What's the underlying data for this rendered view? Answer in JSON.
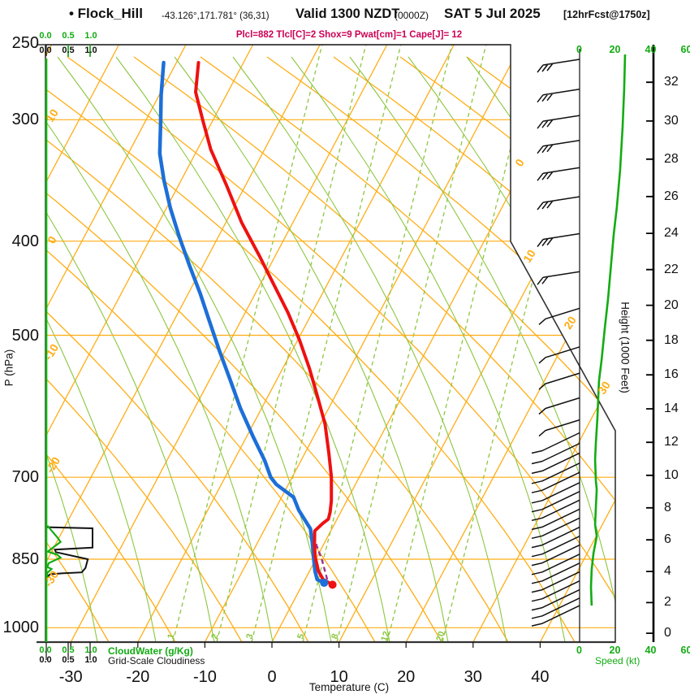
{
  "header": {
    "station": "• Flock_Hill",
    "coords": "-43.126°,171.781° (36,31)",
    "valid": "Valid 1300 NZDT",
    "valid_utc": "(0000Z)",
    "date": "SAT 5 Jul 2025",
    "fcst": "[12hrFcst@1750z]",
    "indices": "Plcl=882 Tlcl[C]=2 Shox=9 Pwat[cm]=1 Cape[J]= 12"
  },
  "axes": {
    "pressure_label": "P (hPa)",
    "pressure_ticks": [
      250,
      300,
      400,
      500,
      700,
      850,
      1000
    ],
    "pressure_gridlines": [
      300,
      400,
      500,
      700,
      850,
      1000
    ],
    "temp_label": "Temperature (C)",
    "temp_ticks": [
      -30,
      -20,
      -10,
      0,
      10,
      20,
      30,
      40
    ],
    "height_label": "Height (1000 Feet)",
    "height_ticks": [
      0,
      2,
      4,
      6,
      8,
      10,
      12,
      14,
      16,
      18,
      20,
      22,
      24,
      26,
      28,
      30,
      32
    ],
    "speed_label": "Speed (kt)",
    "speed_ticks": [
      "0",
      "20",
      "40",
      "60"
    ],
    "cloudwater_label": "CloudWater (g/Kg)",
    "cloudiness_label": "Grid-Scale Cloudiness",
    "cloud_scale": [
      "0.0",
      "0.5",
      "1.0"
    ],
    "isotherm_labels_left": [
      "10",
      "0",
      "-10",
      "-20",
      "-30"
    ],
    "isotherm_labels_right": [
      "0",
      "10",
      "20",
      "30"
    ],
    "mixing_ratio_labels": [
      "1",
      "2",
      "3",
      "5",
      "8",
      "12",
      "20"
    ]
  },
  "colors": {
    "isoline_orange": "#FFAD14",
    "green_ui": "#12AC12",
    "green_plot": "#8CC63F",
    "temp_red": "#EE1111",
    "dew_blue": "#1D6FD8",
    "parcel_magenta": "#993399",
    "indices_magenta": "#CC0055",
    "trace_black": "#111111"
  },
  "chart_data": {
    "type": "skewt-log-p sounding",
    "pressure_range_hpa": [
      250,
      1035
    ],
    "temp_axis_range_c": [
      -35,
      45
    ],
    "temperature_profile_p_t": [
      [
        262,
        -56.7
      ],
      [
        281,
        -54.8
      ],
      [
        301,
        -51.4
      ],
      [
        322,
        -48.0
      ],
      [
        350,
        -42.9
      ],
      [
        383,
        -37.6
      ],
      [
        414,
        -32.4
      ],
      [
        443,
        -28.0
      ],
      [
        474,
        -23.6
      ],
      [
        506,
        -19.7
      ],
      [
        541,
        -16.0
      ],
      [
        578,
        -12.6
      ],
      [
        617,
        -9.3
      ],
      [
        660,
        -6.5
      ],
      [
        699,
        -4.2
      ],
      [
        740,
        -2.3
      ],
      [
        760,
        -1.6
      ],
      [
        773,
        -1.3
      ],
      [
        781,
        -1.8
      ],
      [
        795,
        -2.4
      ],
      [
        820,
        -1.4
      ],
      [
        845,
        -0.3
      ],
      [
        874,
        1.3
      ],
      [
        892,
        2.7
      ],
      [
        903,
        4.5
      ]
    ],
    "dewpoint_profile_p_t": [
      [
        262,
        -61.9
      ],
      [
        283,
        -59.7
      ],
      [
        304,
        -57.4
      ],
      [
        325,
        -55.3
      ],
      [
        346,
        -52.6
      ],
      [
        370,
        -49.4
      ],
      [
        396,
        -45.8
      ],
      [
        424,
        -42.0
      ],
      [
        453,
        -38.2
      ],
      [
        485,
        -34.5
      ],
      [
        519,
        -30.8
      ],
      [
        555,
        -27.0
      ],
      [
        594,
        -23.2
      ],
      [
        635,
        -19.1
      ],
      [
        673,
        -15.4
      ],
      [
        700,
        -13.2
      ],
      [
        712,
        -11.8
      ],
      [
        734,
        -8.2
      ],
      [
        757,
        -6.4
      ],
      [
        791,
        -3.2
      ],
      [
        818,
        -1.8
      ],
      [
        848,
        -0.4
      ],
      [
        874,
        0.8
      ],
      [
        892,
        1.8
      ],
      [
        899,
        3.1
      ]
    ],
    "parcel_path_p_t": [
      [
        892,
        3.3
      ],
      [
        852,
        1.0
      ],
      [
        818,
        -1.3
      ],
      [
        795,
        -3.0
      ]
    ],
    "surface": {
      "pressure": 903,
      "temp_c": 4.5,
      "dewpoint_c": 3.1
    },
    "grid_scale_cloudiness_p_frac": [
      [
        788,
        0.03
      ],
      [
        790,
        1.0
      ],
      [
        827,
        1.0
      ],
      [
        831,
        0.2
      ],
      [
        836,
        0.22
      ],
      [
        850,
        0.9
      ],
      [
        868,
        0.85
      ],
      [
        877,
        0.77
      ],
      [
        879,
        0.35
      ],
      [
        881,
        0.1
      ],
      [
        887,
        0.03
      ]
    ],
    "cloud_water_p_gkg": [
      [
        785,
        0.04
      ],
      [
        807,
        0.25
      ],
      [
        816,
        0.32
      ],
      [
        829,
        0.13
      ],
      [
        835,
        0.05
      ],
      [
        841,
        0.25
      ],
      [
        847,
        0.32
      ],
      [
        858,
        0.07
      ],
      [
        866,
        0.04
      ],
      [
        870,
        0.13
      ],
      [
        878,
        0.04
      ],
      [
        898,
        0.02
      ]
    ],
    "wind_speed_profile_p_kt": [
      [
        257,
        25.7
      ],
      [
        279,
        25.2
      ],
      [
        305,
        24.3
      ],
      [
        338,
        22.9
      ],
      [
        369,
        21.1
      ],
      [
        394,
        19.3
      ],
      [
        430,
        17.5
      ],
      [
        460,
        16.1
      ],
      [
        492,
        14.3
      ],
      [
        531,
        12.5
      ],
      [
        557,
        11.1
      ],
      [
        579,
        10.7
      ],
      [
        609,
        10.2
      ],
      [
        646,
        9.3
      ],
      [
        671,
        8.9
      ],
      [
        705,
        9.3
      ],
      [
        721,
        9.8
      ],
      [
        753,
        9.3
      ],
      [
        783,
        8.9
      ],
      [
        805,
        9.8
      ],
      [
        838,
        8.0
      ],
      [
        871,
        7.0
      ],
      [
        908,
        6.6
      ],
      [
        949,
        7.0
      ]
    ],
    "wind_barbs": [
      {
        "p": 260,
        "style": "f3"
      },
      {
        "p": 279,
        "style": "f3"
      },
      {
        "p": 297,
        "style": "f3"
      },
      {
        "p": 315,
        "style": "f3"
      },
      {
        "p": 336,
        "style": "f3"
      },
      {
        "p": 360,
        "style": "f3"
      },
      {
        "p": 393,
        "style": "f3"
      },
      {
        "p": 430,
        "style": "f2"
      },
      {
        "p": 469,
        "style": "f1"
      },
      {
        "p": 514,
        "style": "f1"
      },
      {
        "p": 547,
        "style": "f1"
      },
      {
        "p": 580,
        "style": "f1"
      },
      {
        "p": 611,
        "style": "f1"
      },
      {
        "p": 630,
        "style": "h"
      },
      {
        "p": 646,
        "style": "h"
      },
      {
        "p": 661,
        "style": "h"
      },
      {
        "p": 677,
        "style": "h"
      },
      {
        "p": 692,
        "style": "h"
      },
      {
        "p": 709,
        "style": "h"
      },
      {
        "p": 724,
        "style": "h"
      },
      {
        "p": 739,
        "style": "h"
      },
      {
        "p": 755,
        "style": "h"
      },
      {
        "p": 771,
        "style": "h"
      },
      {
        "p": 788,
        "style": "h"
      },
      {
        "p": 805,
        "style": "h"
      },
      {
        "p": 822,
        "style": "h"
      },
      {
        "p": 840,
        "style": "h"
      },
      {
        "p": 858,
        "style": "h"
      },
      {
        "p": 876,
        "style": "h"
      },
      {
        "p": 895,
        "style": "h"
      },
      {
        "p": 914,
        "style": "h"
      },
      {
        "p": 932,
        "style": "h"
      },
      {
        "p": 949,
        "style": "h"
      }
    ]
  }
}
